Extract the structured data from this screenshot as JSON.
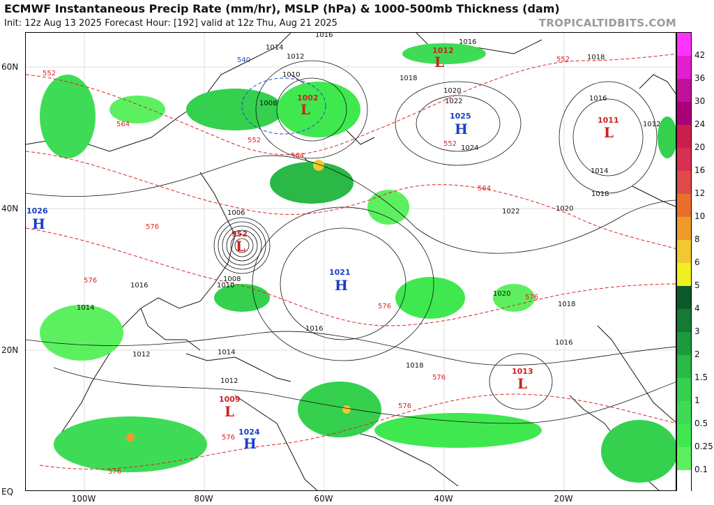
{
  "header": {
    "title": "ECMWF Instantaneous Precip Rate (mm/hr), MSLP (hPa) & 1000-500mb Thickness (dam)",
    "subtitle": "Init: 12z Aug 13 2025   Forecast Hour: [192]   valid at 12z Thu, Aug 21 2025",
    "brand": "TROPICALTIDBITS.COM"
  },
  "axes": {
    "lat_labels": [
      "60N",
      "40N",
      "20N",
      "EQ"
    ],
    "lon_labels": [
      "100W",
      "80W",
      "60W",
      "40W",
      "20W"
    ]
  },
  "colorbar": {
    "labels": [
      "42",
      "36",
      "30",
      "24",
      "20",
      "16",
      "12",
      "10",
      "8",
      "6",
      "5",
      "4",
      "3",
      "2",
      "1.5",
      "1",
      "0.5",
      "0.25",
      "0.1"
    ],
    "colors": [
      "#ff33ff",
      "#e020d0",
      "#c0109a",
      "#a80078",
      "#c8204a",
      "#d83050",
      "#e04a4a",
      "#e8702c",
      "#f09a2a",
      "#f0c830",
      "#f0f020",
      "#0a5a2a",
      "#147a36",
      "#1e9a3e",
      "#2ab846",
      "#34d04e",
      "#3edc56",
      "#40e850",
      "#5cf060"
    ]
  },
  "pressure_centers": [
    {
      "type": "L",
      "value": "952",
      "color": "#cc2222"
    },
    {
      "type": "H",
      "value": "1021",
      "color": "#1a3ec8"
    },
    {
      "type": "H",
      "value": "1025",
      "color": "#1a3ec8"
    },
    {
      "type": "L",
      "value": "1011",
      "color": "#cc2222"
    },
    {
      "type": "L",
      "value": "1012",
      "color": "#cc2222"
    },
    {
      "type": "L",
      "value": "1002",
      "color": "#cc2222"
    },
    {
      "type": "L",
      "value": "1013",
      "color": "#cc2222"
    },
    {
      "type": "L",
      "value": "1009",
      "color": "#cc2222"
    },
    {
      "type": "H",
      "value": "1024",
      "color": "#1a3ec8"
    },
    {
      "type": "H",
      "value": "1026",
      "color": "#1a3ec8"
    }
  ],
  "isobar_labels": [
    "1016",
    "1014",
    "1012",
    "1010",
    "1008",
    "1006",
    "1018",
    "1020",
    "1022",
    "1024",
    "1016",
    "1018",
    "1020",
    "1022",
    "1018",
    "1016",
    "1014",
    "1012",
    "1016",
    "1018",
    "1020",
    "1018",
    "1016",
    "1014",
    "1012",
    "1016",
    "1014",
    "1012",
    "1010",
    "1008"
  ],
  "thickness_labels": [
    "552",
    "564",
    "576",
    "540",
    "552",
    "564",
    "576",
    "576",
    "552",
    "564",
    "576",
    "576",
    "576",
    "576",
    "552",
    "576"
  ]
}
